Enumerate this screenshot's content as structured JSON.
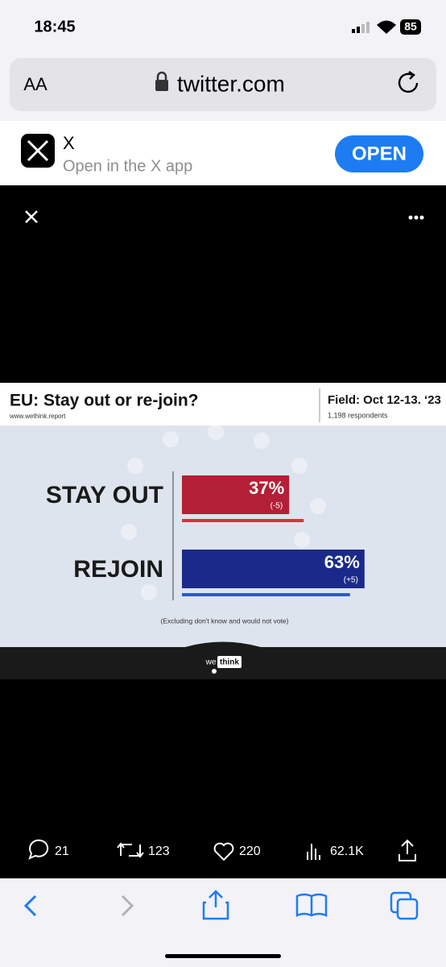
{
  "status_bar": {
    "time": "18:45",
    "battery": "85"
  },
  "address_bar": {
    "text_size": "AA",
    "url": "twitter.com"
  },
  "app_banner": {
    "app_name": "X",
    "subtitle": "Open in the X app",
    "button": "OPEN"
  },
  "chart_data": {
    "type": "bar",
    "orientation": "horizontal",
    "title": "EU: Stay out or re-join?",
    "source": "www.wethink.report",
    "field": "Field: Oct 12-13. ‘23",
    "respondents": "1,198 respondents",
    "categories": [
      "STAY OUT",
      "REJOIN"
    ],
    "values": [
      37,
      63
    ],
    "value_labels": [
      "37%",
      "63%"
    ],
    "change_labels": [
      "(-5)",
      "(+5)"
    ],
    "previous_values": [
      42,
      58
    ],
    "colors": [
      "#b31f36",
      "#1b2a8a"
    ],
    "previous_colors": [
      "#d8323f",
      "#2c5ad2"
    ],
    "note": "(Excluding don't know and would not vote)",
    "logo": [
      "we",
      "think"
    ]
  },
  "tweet_actions": {
    "replies": "21",
    "retweets": "123",
    "likes": "220",
    "views": "62.1K"
  }
}
